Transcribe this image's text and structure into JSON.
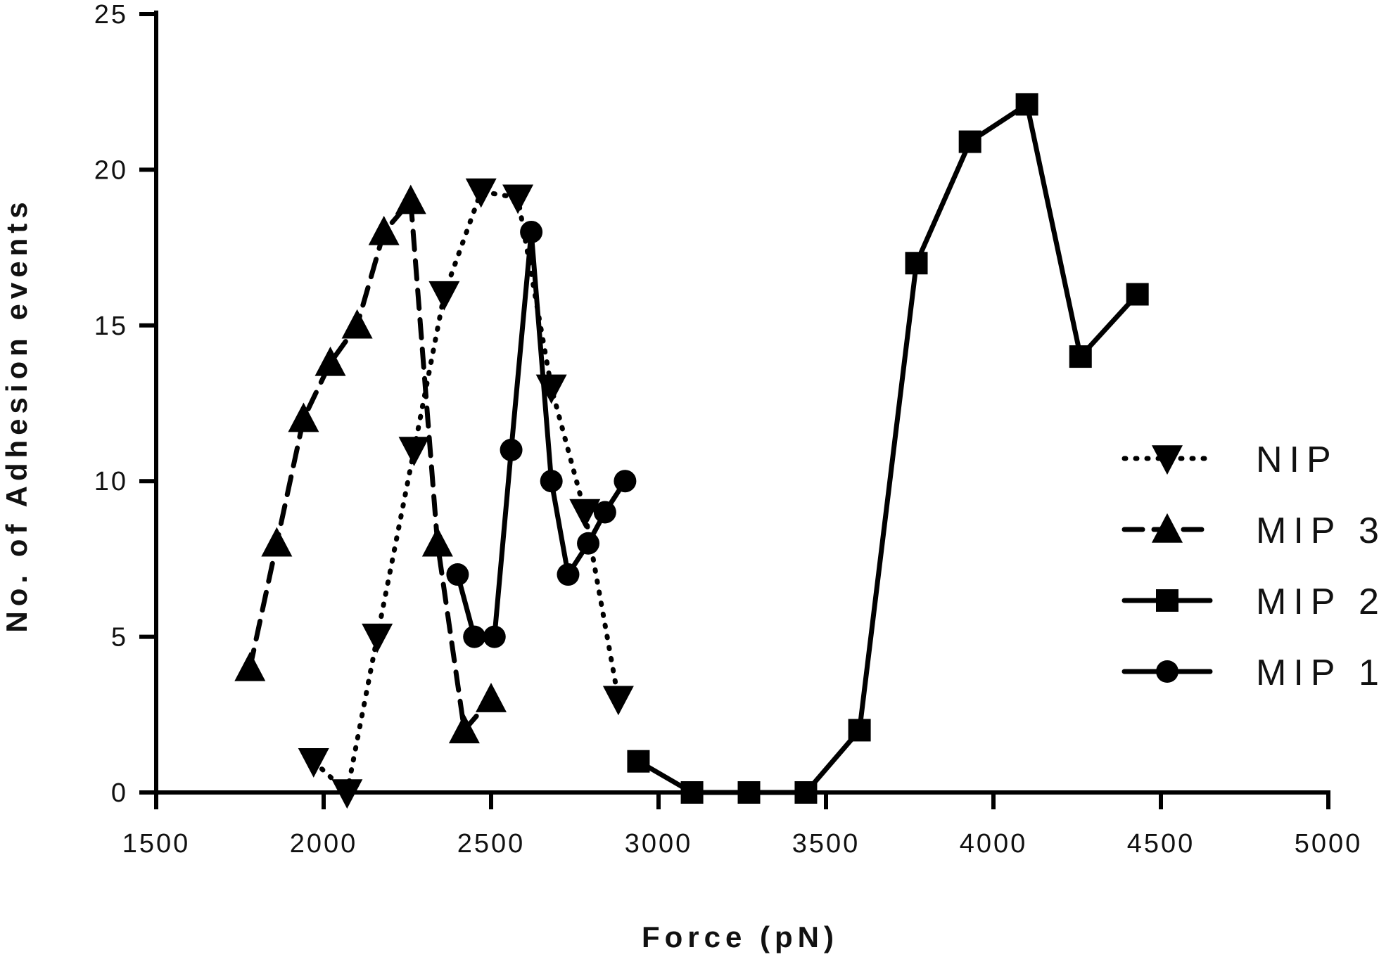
{
  "chart_data": {
    "type": "line",
    "title": "",
    "xlabel": "Force (pN)",
    "ylabel": "No. of Adhesion events",
    "xlim": [
      1500,
      5000
    ],
    "ylim": [
      0,
      25
    ],
    "xticks": [
      1500,
      2000,
      2500,
      3000,
      3500,
      4000,
      4500,
      5000
    ],
    "yticks": [
      0,
      5,
      10,
      15,
      20,
      25
    ],
    "grid": false,
    "legend_position": "right",
    "series": [
      {
        "name": "NIP",
        "marker": "triangle-down",
        "line_style": "dotted",
        "color": "#000000",
        "x": [
          1970,
          2070,
          2160,
          2270,
          2360,
          2470,
          2580,
          2680,
          2780,
          2880
        ],
        "y": [
          1,
          0,
          5,
          11,
          16,
          19.3,
          19.1,
          13,
          9,
          3
        ]
      },
      {
        "name": "MIP 3",
        "marker": "triangle-up",
        "line_style": "dashed",
        "color": "#000000",
        "x": [
          1780,
          1860,
          1940,
          2020,
          2100,
          2180,
          2260,
          2340,
          2420,
          2500
        ],
        "y": [
          4,
          8,
          12,
          13.8,
          15,
          18,
          19,
          8,
          2,
          3
        ]
      },
      {
        "name": "MIP 2",
        "marker": "square",
        "line_style": "solid",
        "color": "#000000",
        "x": [
          2940,
          3100,
          3270,
          3440,
          3600,
          3770,
          3930,
          4100,
          4260,
          4430
        ],
        "y": [
          1,
          0,
          0,
          0,
          2,
          17,
          20.9,
          22.1,
          14,
          16
        ]
      },
      {
        "name": "MIP 1",
        "marker": "circle",
        "line_style": "solid",
        "color": "#000000",
        "x": [
          2400,
          2450,
          2510,
          2560,
          2620,
          2680,
          2730,
          2790,
          2840,
          2900
        ],
        "y": [
          7,
          5,
          5,
          11,
          18,
          10,
          7,
          8,
          9,
          10
        ]
      }
    ]
  }
}
